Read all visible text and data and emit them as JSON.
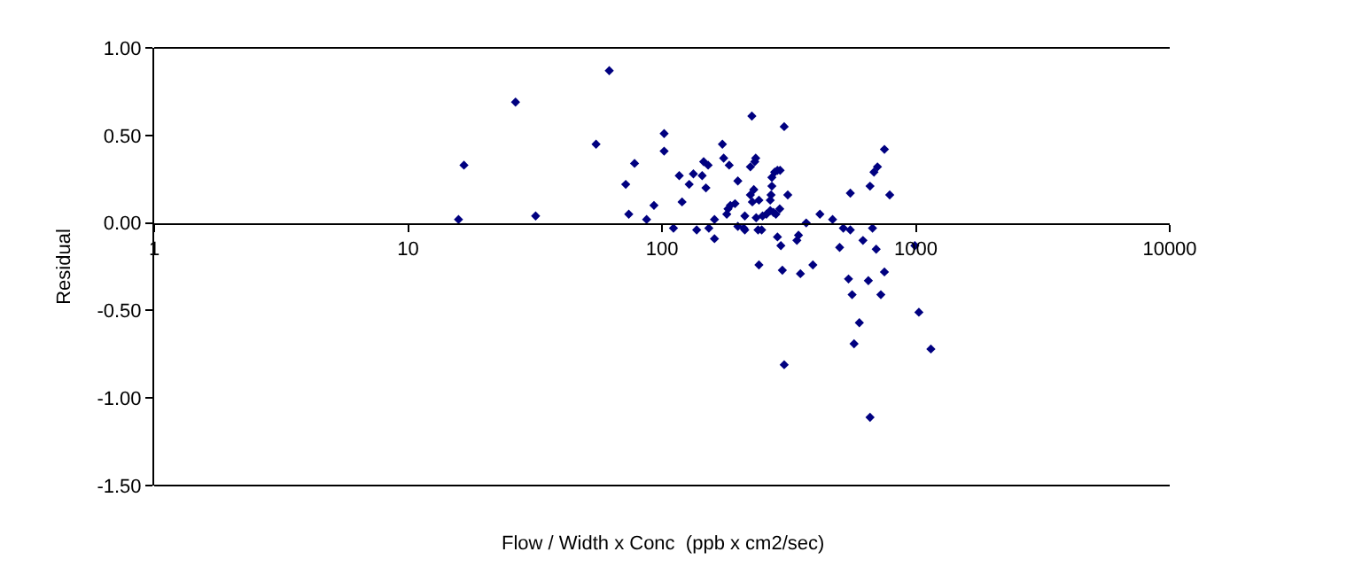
{
  "chart_data": {
    "type": "scatter",
    "xlabel": "Flow / Width x Conc  (ppb x cm2/sec)",
    "ylabel": "Residual",
    "log": "x",
    "marker": "diamond",
    "xlim": [
      1,
      10000
    ],
    "xticks": [
      1,
      10,
      100,
      1000,
      10000
    ],
    "ylim": [
      -1.5,
      1.0
    ],
    "yticks": [
      {
        "value": -1.5,
        "label": "-1.50"
      },
      {
        "value": -1.0,
        "label": "-1.00"
      },
      {
        "value": -0.5,
        "label": "-0.50"
      },
      {
        "value": 0,
        "label": "0.00"
      },
      {
        "value": 0.5,
        "label": "0.50"
      },
      {
        "value": 1.0,
        "label": "1.00"
      }
    ],
    "series": [
      {
        "color": "#000080",
        "x": [
          15.8,
          16.6,
          26.5,
          31.8,
          55,
          62,
          72,
          74,
          78,
          87,
          93,
          102,
          102,
          111,
          117,
          120,
          128,
          133,
          137,
          144,
          146,
          149,
          152,
          153,
          161,
          161,
          173,
          175,
          180,
          182,
          184,
          186,
          194,
          199,
          199,
          210,
          212,
          212,
          223,
          223,
          226,
          227,
          230,
          232,
          234,
          235,
          239,
          241,
          247,
          249,
          258,
          267,
          267,
          269,
          271,
          271,
          275,
          278,
          281,
          285,
          285,
          291,
          292,
          294,
          303,
          313,
          340,
          345,
          370,
          419,
          470,
          501,
          518,
          552,
          552,
          619,
          660,
          675,
          684,
          706,
          698,
          752,
          789,
          991,
          241,
          298,
          351,
          393,
          543,
          650,
          752,
          561,
          728,
          1028,
          599,
          571,
          1146,
          303,
          660
        ],
        "values": [
          0.02,
          0.33,
          0.69,
          0.04,
          0.45,
          0.87,
          0.22,
          0.05,
          0.34,
          0.02,
          0.1,
          0.51,
          0.41,
          -0.03,
          0.27,
          0.12,
          0.22,
          0.28,
          -0.04,
          0.27,
          0.35,
          0.2,
          0.33,
          -0.03,
          0.02,
          -0.09,
          0.45,
          0.37,
          0.05,
          0.08,
          0.33,
          0.1,
          0.11,
          0.24,
          -0.02,
          -0.03,
          0.04,
          -0.04,
          0.32,
          0.16,
          0.61,
          0.12,
          0.19,
          0.35,
          0.37,
          0.03,
          -0.04,
          0.13,
          -0.04,
          0.04,
          0.05,
          0.07,
          0.13,
          0.16,
          0.21,
          0.26,
          0.06,
          0.29,
          0.05,
          0.3,
          -0.08,
          0.08,
          0.3,
          -0.13,
          0.55,
          0.16,
          -0.1,
          -0.07,
          0.0,
          0.05,
          0.02,
          -0.14,
          -0.03,
          0.17,
          -0.04,
          -0.1,
          0.21,
          -0.03,
          0.29,
          0.32,
          -0.15,
          0.42,
          0.16,
          -0.13,
          -0.24,
          -0.27,
          -0.29,
          -0.24,
          -0.32,
          -0.33,
          -0.28,
          -0.41,
          -0.41,
          -0.51,
          -0.57,
          -0.69,
          -0.72,
          -0.81,
          -1.11
        ]
      }
    ]
  }
}
